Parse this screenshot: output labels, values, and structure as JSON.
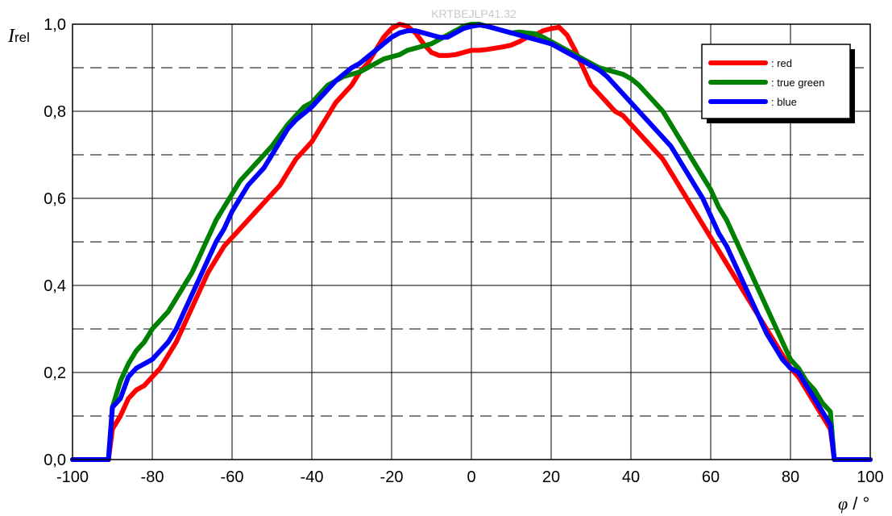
{
  "watermark": "KRTBEJLP41.32",
  "chart_data": {
    "type": "line",
    "xlabel": {
      "symbol": "φ",
      "unit": " / °"
    },
    "ylabel": {
      "symbol": "I",
      "subscript": "rel"
    },
    "xlim": [
      -100,
      100
    ],
    "ylim": [
      0,
      1.0
    ],
    "x_ticks": [
      -100,
      -80,
      -60,
      -40,
      -20,
      0,
      20,
      40,
      60,
      80,
      100
    ],
    "x_tick_labels": [
      "-100",
      "-80",
      "-60",
      "-40",
      "-20",
      "0",
      "20",
      "40",
      "60",
      "80",
      "100"
    ],
    "y_ticks": [
      0,
      0.2,
      0.4,
      0.6,
      0.8,
      1.0
    ],
    "y_tick_labels": [
      "0,0",
      "0,2",
      "0,4",
      "0,6",
      "0,8",
      "1,0"
    ],
    "grid": {
      "major_solid": true,
      "minor_dashed_y": [
        0.1,
        0.3,
        0.5,
        0.7,
        0.9
      ]
    },
    "legend": {
      "placement": "top-right"
    },
    "series": [
      {
        "name": ": red",
        "color": "#ff0000",
        "points": [
          [
            -100,
            0
          ],
          [
            -91,
            0
          ],
          [
            -90,
            0.07
          ],
          [
            -88,
            0.1
          ],
          [
            -86,
            0.14
          ],
          [
            -84,
            0.16
          ],
          [
            -82,
            0.17
          ],
          [
            -80,
            0.19
          ],
          [
            -78,
            0.21
          ],
          [
            -76,
            0.24
          ],
          [
            -74,
            0.27
          ],
          [
            -72,
            0.31
          ],
          [
            -70,
            0.35
          ],
          [
            -68,
            0.39
          ],
          [
            -66,
            0.43
          ],
          [
            -64,
            0.46
          ],
          [
            -62,
            0.49
          ],
          [
            -60,
            0.51
          ],
          [
            -58,
            0.53
          ],
          [
            -56,
            0.55
          ],
          [
            -54,
            0.57
          ],
          [
            -52,
            0.59
          ],
          [
            -50,
            0.61
          ],
          [
            -48,
            0.63
          ],
          [
            -46,
            0.66
          ],
          [
            -44,
            0.69
          ],
          [
            -42,
            0.71
          ],
          [
            -40,
            0.73
          ],
          [
            -38,
            0.76
          ],
          [
            -36,
            0.79
          ],
          [
            -34,
            0.82
          ],
          [
            -32,
            0.84
          ],
          [
            -30,
            0.86
          ],
          [
            -28,
            0.89
          ],
          [
            -26,
            0.91
          ],
          [
            -24,
            0.94
          ],
          [
            -22,
            0.97
          ],
          [
            -20,
            0.99
          ],
          [
            -18,
            1.0
          ],
          [
            -16,
            0.995
          ],
          [
            -14,
            0.98
          ],
          [
            -12,
            0.955
          ],
          [
            -10,
            0.935
          ],
          [
            -8,
            0.928
          ],
          [
            -6,
            0.928
          ],
          [
            -4,
            0.93
          ],
          [
            -2,
            0.935
          ],
          [
            0,
            0.94
          ],
          [
            2,
            0.94
          ],
          [
            4,
            0.942
          ],
          [
            6,
            0.945
          ],
          [
            8,
            0.948
          ],
          [
            10,
            0.952
          ],
          [
            12,
            0.96
          ],
          [
            14,
            0.97
          ],
          [
            16,
            0.975
          ],
          [
            18,
            0.985
          ],
          [
            20,
            0.99
          ],
          [
            22,
            0.993
          ],
          [
            24,
            0.975
          ],
          [
            26,
            0.94
          ],
          [
            28,
            0.9
          ],
          [
            30,
            0.86
          ],
          [
            32,
            0.84
          ],
          [
            34,
            0.82
          ],
          [
            36,
            0.8
          ],
          [
            38,
            0.79
          ],
          [
            40,
            0.77
          ],
          [
            42,
            0.75
          ],
          [
            44,
            0.73
          ],
          [
            46,
            0.71
          ],
          [
            48,
            0.69
          ],
          [
            50,
            0.66
          ],
          [
            52,
            0.63
          ],
          [
            54,
            0.6
          ],
          [
            56,
            0.57
          ],
          [
            58,
            0.54
          ],
          [
            60,
            0.51
          ],
          [
            62,
            0.48
          ],
          [
            64,
            0.45
          ],
          [
            66,
            0.42
          ],
          [
            68,
            0.39
          ],
          [
            70,
            0.36
          ],
          [
            72,
            0.33
          ],
          [
            74,
            0.3
          ],
          [
            76,
            0.27
          ],
          [
            78,
            0.24
          ],
          [
            80,
            0.21
          ],
          [
            82,
            0.19
          ],
          [
            84,
            0.16
          ],
          [
            86,
            0.13
          ],
          [
            88,
            0.1
          ],
          [
            90,
            0.07
          ],
          [
            91,
            0
          ],
          [
            100,
            0
          ]
        ]
      },
      {
        "name": ": true green",
        "color": "#008000",
        "points": [
          [
            -100,
            0
          ],
          [
            -91,
            0
          ],
          [
            -90,
            0.12
          ],
          [
            -88,
            0.18
          ],
          [
            -86,
            0.22
          ],
          [
            -84,
            0.25
          ],
          [
            -82,
            0.27
          ],
          [
            -80,
            0.3
          ],
          [
            -78,
            0.32
          ],
          [
            -76,
            0.34
          ],
          [
            -74,
            0.37
          ],
          [
            -72,
            0.4
          ],
          [
            -70,
            0.43
          ],
          [
            -68,
            0.47
          ],
          [
            -66,
            0.51
          ],
          [
            -64,
            0.55
          ],
          [
            -62,
            0.58
          ],
          [
            -60,
            0.61
          ],
          [
            -58,
            0.64
          ],
          [
            -56,
            0.66
          ],
          [
            -54,
            0.68
          ],
          [
            -52,
            0.7
          ],
          [
            -50,
            0.72
          ],
          [
            -48,
            0.745
          ],
          [
            -46,
            0.77
          ],
          [
            -44,
            0.79
          ],
          [
            -42,
            0.81
          ],
          [
            -40,
            0.82
          ],
          [
            -38,
            0.84
          ],
          [
            -36,
            0.86
          ],
          [
            -34,
            0.87
          ],
          [
            -32,
            0.88
          ],
          [
            -30,
            0.885
          ],
          [
            -28,
            0.89
          ],
          [
            -26,
            0.9
          ],
          [
            -24,
            0.91
          ],
          [
            -22,
            0.92
          ],
          [
            -20,
            0.925
          ],
          [
            -18,
            0.93
          ],
          [
            -16,
            0.94
          ],
          [
            -14,
            0.945
          ],
          [
            -12,
            0.95
          ],
          [
            -10,
            0.955
          ],
          [
            -8,
            0.965
          ],
          [
            -6,
            0.975
          ],
          [
            -4,
            0.985
          ],
          [
            -2,
            0.995
          ],
          [
            0,
            1.0
          ],
          [
            2,
            1.0
          ],
          [
            4,
            0.995
          ],
          [
            6,
            0.99
          ],
          [
            8,
            0.985
          ],
          [
            10,
            0.98
          ],
          [
            12,
            0.982
          ],
          [
            14,
            0.98
          ],
          [
            16,
            0.978
          ],
          [
            18,
            0.97
          ],
          [
            20,
            0.96
          ],
          [
            22,
            0.95
          ],
          [
            24,
            0.94
          ],
          [
            26,
            0.93
          ],
          [
            28,
            0.92
          ],
          [
            30,
            0.91
          ],
          [
            32,
            0.9
          ],
          [
            34,
            0.895
          ],
          [
            36,
            0.89
          ],
          [
            38,
            0.885
          ],
          [
            40,
            0.875
          ],
          [
            42,
            0.86
          ],
          [
            44,
            0.84
          ],
          [
            46,
            0.82
          ],
          [
            48,
            0.8
          ],
          [
            50,
            0.77
          ],
          [
            52,
            0.74
          ],
          [
            54,
            0.71
          ],
          [
            56,
            0.68
          ],
          [
            58,
            0.65
          ],
          [
            60,
            0.62
          ],
          [
            62,
            0.58
          ],
          [
            64,
            0.55
          ],
          [
            66,
            0.51
          ],
          [
            68,
            0.47
          ],
          [
            70,
            0.43
          ],
          [
            72,
            0.39
          ],
          [
            74,
            0.35
          ],
          [
            76,
            0.31
          ],
          [
            78,
            0.27
          ],
          [
            80,
            0.23
          ],
          [
            82,
            0.21
          ],
          [
            84,
            0.18
          ],
          [
            86,
            0.16
          ],
          [
            88,
            0.13
          ],
          [
            90,
            0.11
          ],
          [
            91,
            0
          ],
          [
            100,
            0
          ]
        ]
      },
      {
        "name": ": blue",
        "color": "#0000ff",
        "points": [
          [
            -100,
            0
          ],
          [
            -91,
            0
          ],
          [
            -90,
            0.12
          ],
          [
            -88,
            0.14
          ],
          [
            -86,
            0.19
          ],
          [
            -84,
            0.21
          ],
          [
            -82,
            0.22
          ],
          [
            -80,
            0.23
          ],
          [
            -78,
            0.25
          ],
          [
            -76,
            0.27
          ],
          [
            -74,
            0.3
          ],
          [
            -72,
            0.34
          ],
          [
            -70,
            0.38
          ],
          [
            -68,
            0.42
          ],
          [
            -66,
            0.46
          ],
          [
            -64,
            0.5
          ],
          [
            -62,
            0.53
          ],
          [
            -60,
            0.57
          ],
          [
            -58,
            0.6
          ],
          [
            -56,
            0.63
          ],
          [
            -54,
            0.65
          ],
          [
            -52,
            0.67
          ],
          [
            -50,
            0.7
          ],
          [
            -48,
            0.73
          ],
          [
            -46,
            0.76
          ],
          [
            -44,
            0.78
          ],
          [
            -42,
            0.795
          ],
          [
            -40,
            0.81
          ],
          [
            -38,
            0.83
          ],
          [
            -36,
            0.85
          ],
          [
            -34,
            0.87
          ],
          [
            -32,
            0.885
          ],
          [
            -30,
            0.9
          ],
          [
            -28,
            0.91
          ],
          [
            -26,
            0.925
          ],
          [
            -24,
            0.94
          ],
          [
            -22,
            0.955
          ],
          [
            -20,
            0.97
          ],
          [
            -18,
            0.98
          ],
          [
            -16,
            0.985
          ],
          [
            -14,
            0.985
          ],
          [
            -12,
            0.98
          ],
          [
            -10,
            0.975
          ],
          [
            -8,
            0.97
          ],
          [
            -6,
            0.97
          ],
          [
            -4,
            0.98
          ],
          [
            -2,
            0.99
          ],
          [
            0,
            0.995
          ],
          [
            2,
            0.998
          ],
          [
            4,
            0.995
          ],
          [
            6,
            0.99
          ],
          [
            8,
            0.985
          ],
          [
            10,
            0.98
          ],
          [
            12,
            0.975
          ],
          [
            14,
            0.97
          ],
          [
            16,
            0.965
          ],
          [
            18,
            0.96
          ],
          [
            20,
            0.955
          ],
          [
            22,
            0.945
          ],
          [
            24,
            0.935
          ],
          [
            26,
            0.925
          ],
          [
            28,
            0.915
          ],
          [
            30,
            0.905
          ],
          [
            32,
            0.895
          ],
          [
            34,
            0.88
          ],
          [
            36,
            0.86
          ],
          [
            38,
            0.84
          ],
          [
            40,
            0.82
          ],
          [
            42,
            0.8
          ],
          [
            44,
            0.78
          ],
          [
            46,
            0.76
          ],
          [
            48,
            0.74
          ],
          [
            50,
            0.72
          ],
          [
            52,
            0.69
          ],
          [
            54,
            0.66
          ],
          [
            56,
            0.63
          ],
          [
            58,
            0.6
          ],
          [
            60,
            0.56
          ],
          [
            62,
            0.52
          ],
          [
            64,
            0.49
          ],
          [
            66,
            0.45
          ],
          [
            68,
            0.41
          ],
          [
            70,
            0.37
          ],
          [
            72,
            0.33
          ],
          [
            74,
            0.29
          ],
          [
            76,
            0.26
          ],
          [
            78,
            0.23
          ],
          [
            80,
            0.21
          ],
          [
            82,
            0.2
          ],
          [
            84,
            0.17
          ],
          [
            86,
            0.14
          ],
          [
            88,
            0.11
          ],
          [
            90,
            0.08
          ],
          [
            91,
            0
          ],
          [
            100,
            0
          ]
        ]
      }
    ]
  }
}
